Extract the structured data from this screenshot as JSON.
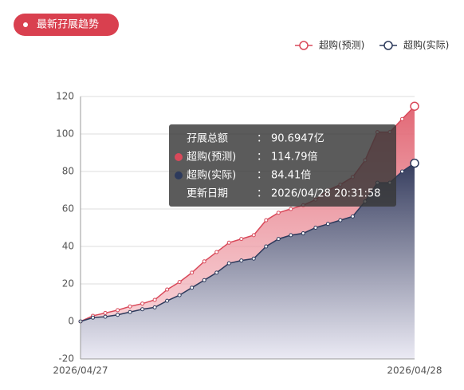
{
  "badge": "最新孖展趋势",
  "chart_data": {
    "type": "area",
    "categories": [
      "2026/04/27",
      null,
      null,
      null,
      null,
      null,
      null,
      null,
      null,
      null,
      null,
      null,
      null,
      null,
      null,
      null,
      null,
      null,
      null,
      null,
      null,
      null,
      null,
      null,
      null,
      null,
      null,
      "2026/04/28"
    ],
    "series": [
      {
        "name": "超购(预测)",
        "color": "#d9495a",
        "values": [
          0,
          3,
          4.5,
          6,
          8,
          9.5,
          11.5,
          17,
          21,
          26,
          32,
          37,
          42,
          44,
          46,
          54,
          58,
          60,
          62,
          65,
          70,
          73,
          77,
          86,
          101,
          101,
          108,
          114.79
        ]
      },
      {
        "name": "超购(实际)",
        "color": "#2d3a5c",
        "values": [
          0,
          2,
          2.5,
          3.5,
          5,
          6.5,
          7.5,
          11,
          14,
          18,
          22,
          26,
          31,
          32.5,
          33.5,
          40,
          44,
          46,
          47,
          50,
          52,
          54,
          56,
          64,
          74,
          74,
          80,
          84.41
        ]
      }
    ],
    "ylim": [
      -20,
      120
    ],
    "yticks": [
      -20,
      0,
      20,
      40,
      60,
      80,
      100,
      120
    ],
    "grid": true,
    "legend": "top-right"
  },
  "tooltip": {
    "rows": [
      {
        "label": "孖展总额",
        "colon": "：",
        "value": "90.6947亿"
      },
      {
        "label": "超购(预测)",
        "colon": "：",
        "value": "114.79倍"
      },
      {
        "label": "超购(实际)",
        "colon": "：",
        "value": "84.41倍"
      },
      {
        "label": "更新日期",
        "colon": "：",
        "value": "2026/04/28 20:31:58"
      }
    ]
  }
}
